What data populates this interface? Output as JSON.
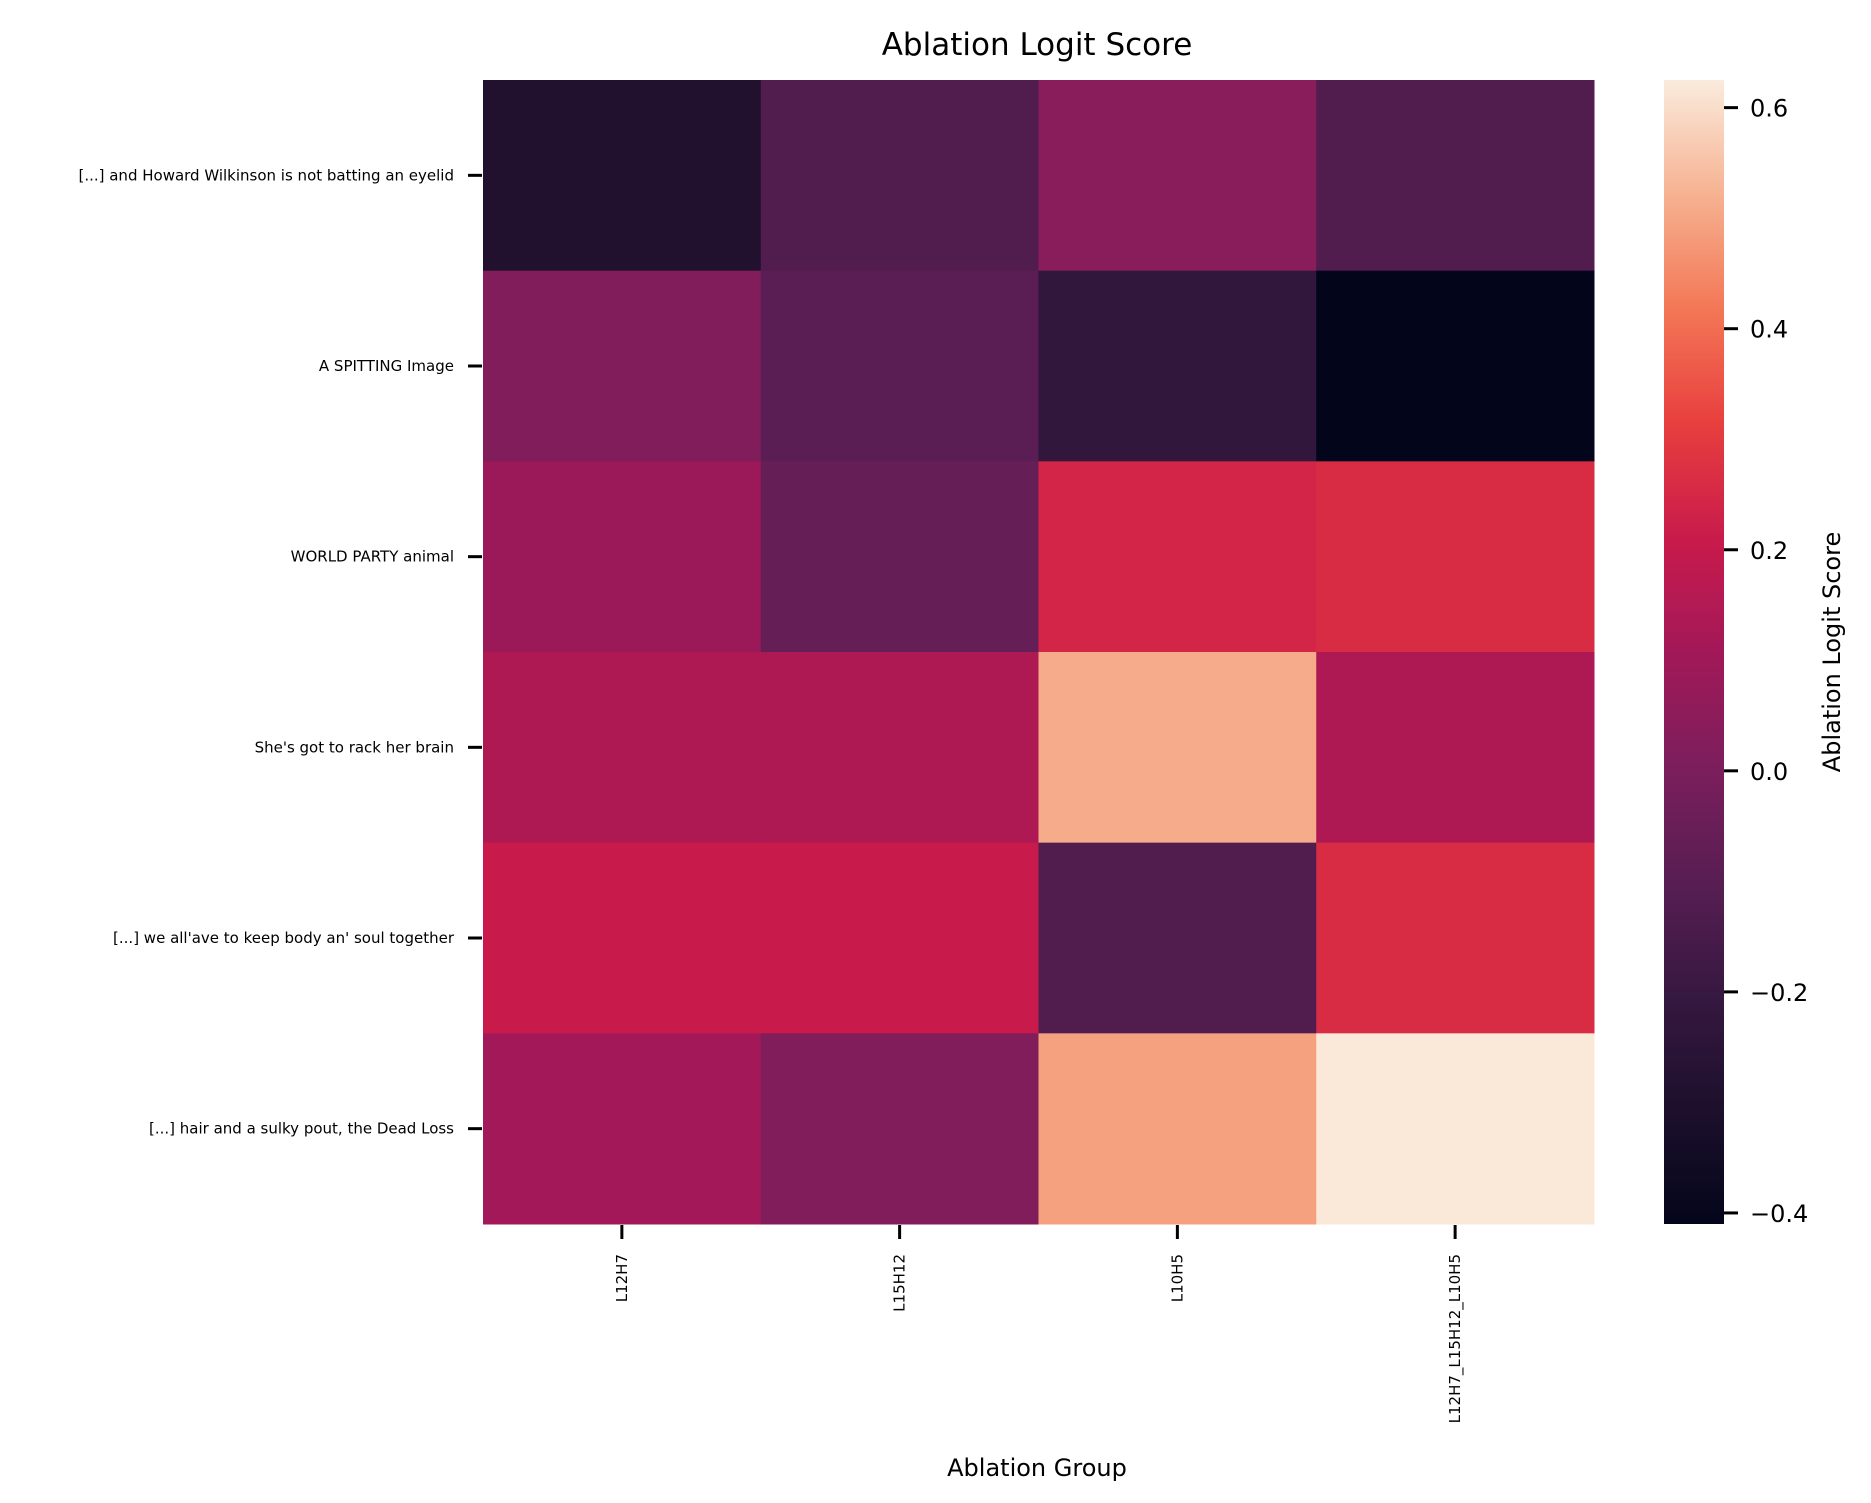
{
  "chart_data": {
    "type": "heatmap",
    "title": "Ablation Logit Score",
    "xlabel": "Ablation Group",
    "ylabel": "",
    "colorbar_label": "Ablation Logit Score",
    "colormap": "rocket",
    "x_categories": [
      "L12H7",
      "L15H12",
      "L10H5",
      "L12H7_L15H12_L10H5"
    ],
    "y_categories": [
      "[...] and Howard Wilkinson is not batting an  eyelid",
      "A SPITTING  Image",
      "WORLD PARTY  animal",
      "She's got to rack her  brain",
      "[...] we all'ave to keep body an' soul  together",
      "[...] hair and a sulky pout, the Dead  Loss"
    ],
    "values": [
      [
        -0.29,
        -0.12,
        0.04,
        -0.12
      ],
      [
        0.02,
        -0.09,
        -0.22,
        -0.41
      ],
      [
        0.09,
        -0.06,
        0.24,
        0.26
      ],
      [
        0.14,
        0.14,
        0.51,
        0.14
      ],
      [
        0.21,
        0.21,
        -0.12,
        0.26
      ],
      [
        0.11,
        0.02,
        0.49,
        0.62
      ]
    ],
    "vmin": -0.41,
    "vmax": 0.625,
    "colorbar_ticks": [
      -0.4,
      -0.2,
      0.0,
      0.2,
      0.4,
      0.6
    ],
    "colorbar_tick_labels": [
      "−0.4",
      "−0.2",
      "0.0",
      "0.2",
      "0.4",
      "0.6"
    ]
  }
}
